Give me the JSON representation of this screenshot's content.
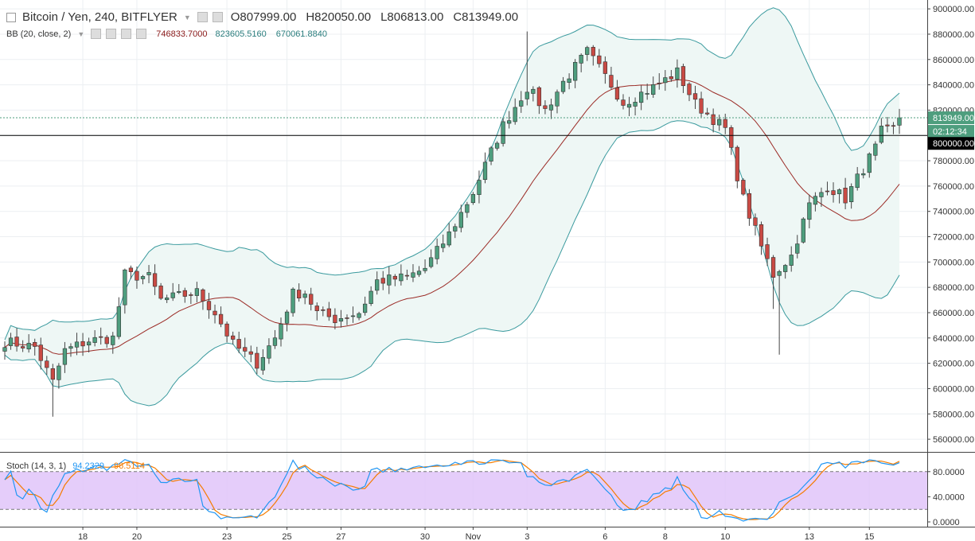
{
  "header": {
    "symbol": "Bitcoin / Yen, 240, BITFLYER",
    "open": "O807999.00",
    "high": "H820050.00",
    "low": "L806813.00",
    "close": "C813949.00"
  },
  "indicator_bb": {
    "label": "BB (20, close, 2)",
    "basis": "746833.7000",
    "upper": "823605.5160",
    "lower": "670061.8840"
  },
  "indicator_stoch": {
    "label": "Stoch (14, 3, 1)",
    "k": "94.2329",
    "d": "96.5114"
  },
  "price_tags": {
    "last": "813949.00",
    "countdown": "02:12:34",
    "crosshair": "800000.00"
  },
  "colors": {
    "up": "#4e9e7e",
    "down": "#c94a44",
    "band_line": "#3a9a9e",
    "band_fill": "#eef7f5",
    "basis": "#9b2b26",
    "stoch_k": "#2196f3",
    "stoch_d": "#f57c00",
    "stoch_band": "#e1c4f9"
  },
  "chart_data": {
    "type": "candlestick",
    "title": "Bitcoin / Yen, 240, BITFLYER",
    "y_ticks": [
      "900000.00",
      "880000.00",
      "860000.00",
      "840000.00",
      "820000.00",
      "800000.00",
      "780000.00",
      "760000.00",
      "740000.00",
      "720000.00",
      "700000.00",
      "680000.00",
      "660000.00",
      "640000.00",
      "620000.00",
      "600000.00",
      "580000.00",
      "560000.00"
    ],
    "ylim": [
      550000,
      907000
    ],
    "x_ticks": [
      "18",
      "20",
      "23",
      "25",
      "27",
      "30",
      "Nov",
      "3",
      "6",
      "8",
      "10",
      "13",
      "15"
    ],
    "x_tick_positions": [
      13,
      22,
      37,
      47,
      56,
      70,
      78,
      87,
      100,
      110,
      120,
      134,
      144
    ],
    "n_bars": 150,
    "last_price": 813949,
    "horizontal_line": 800000,
    "anchors": [
      [
        0,
        637000
      ],
      [
        5,
        633000
      ],
      [
        8,
        605000
      ],
      [
        10,
        630000
      ],
      [
        14,
        638000
      ],
      [
        18,
        640000
      ],
      [
        20,
        690000
      ],
      [
        24,
        688000
      ],
      [
        26,
        670000
      ],
      [
        32,
        676000
      ],
      [
        35,
        660000
      ],
      [
        38,
        635000
      ],
      [
        42,
        620000
      ],
      [
        45,
        640000
      ],
      [
        48,
        675000
      ],
      [
        50,
        676000
      ],
      [
        52,
        660000
      ],
      [
        55,
        655000
      ],
      [
        59,
        660000
      ],
      [
        62,
        685000
      ],
      [
        67,
        688000
      ],
      [
        70,
        695000
      ],
      [
        74,
        722000
      ],
      [
        78,
        755000
      ],
      [
        83,
        808000
      ],
      [
        87,
        838000
      ],
      [
        90,
        820000
      ],
      [
        93,
        842000
      ],
      [
        97,
        866000
      ],
      [
        101,
        840000
      ],
      [
        103,
        826000
      ],
      [
        108,
        838000
      ],
      [
        112,
        850000
      ],
      [
        115,
        825000
      ],
      [
        120,
        805000
      ],
      [
        123,
        750000
      ],
      [
        126,
        712000
      ],
      [
        128,
        690000
      ],
      [
        131,
        705000
      ],
      [
        134,
        745000
      ],
      [
        137,
        760000
      ],
      [
        140,
        750000
      ],
      [
        145,
        790000
      ],
      [
        147,
        816000
      ]
    ],
    "bb": {
      "basis": 746833.7,
      "upper": 823605.516,
      "lower": 670061.884
    },
    "stoch": {
      "ylim": [
        0,
        100
      ],
      "ticks": [
        "80.0000",
        "40.0000",
        "0.0000"
      ],
      "band": [
        20,
        80
      ],
      "k_last": 94.2329,
      "d_last": 96.5114
    }
  }
}
